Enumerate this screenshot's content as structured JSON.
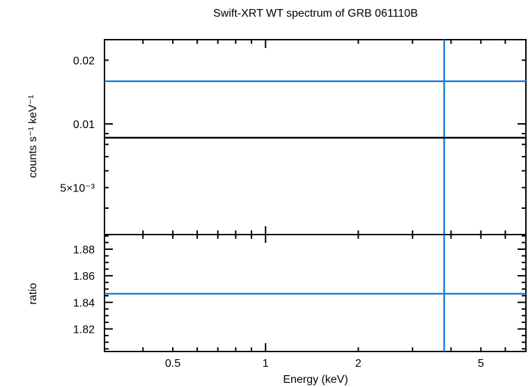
{
  "chart_data": [
    {
      "type": "line",
      "panel": "spectrum",
      "title": "Swift-XRT WT spectrum of GRB 061110B",
      "ylabel": "counts s⁻¹ keV⁻¹",
      "xlabel": "",
      "xscale": "log",
      "yscale": "log",
      "xlim": [
        0.3,
        7.0
      ],
      "ylim": [
        0.003,
        0.025
      ],
      "ytick_labels": [
        "0.02",
        "0.01",
        "5×10⁻³"
      ],
      "ytick_values": [
        0.02,
        0.01,
        0.005
      ],
      "series": [
        {
          "color": "#1f7fdf",
          "x": [
            0.3,
            7.0
          ],
          "y": [
            0.0159,
            0.0159
          ],
          "xerr": {
            "x": 3.8,
            "ylow": 0.003,
            "yhigh": 0.025
          }
        },
        {
          "color": "#000000",
          "x": [
            0.3,
            7.0
          ],
          "y": [
            0.0086,
            0.0086
          ]
        }
      ]
    },
    {
      "type": "line",
      "panel": "ratio",
      "ylabel": "ratio",
      "xlabel": "Energy (keV)",
      "xscale": "log",
      "xlim": [
        0.3,
        7.0
      ],
      "ylim": [
        1.803,
        1.891
      ],
      "ytick_labels": [
        "1.88",
        "1.86",
        "1.84",
        "1.82"
      ],
      "ytick_values": [
        1.88,
        1.86,
        1.84,
        1.82
      ],
      "xtick_labels": [
        "0.5",
        "1",
        "2",
        "5"
      ],
      "xtick_values": [
        0.5,
        1,
        2,
        5
      ],
      "series": [
        {
          "color": "#1f7fdf",
          "x": [
            0.3,
            7.0
          ],
          "y": [
            1.8465,
            1.8465
          ],
          "xerr": {
            "x": 3.8,
            "ylow": 1.803,
            "yhigh": 1.891
          }
        }
      ]
    }
  ]
}
